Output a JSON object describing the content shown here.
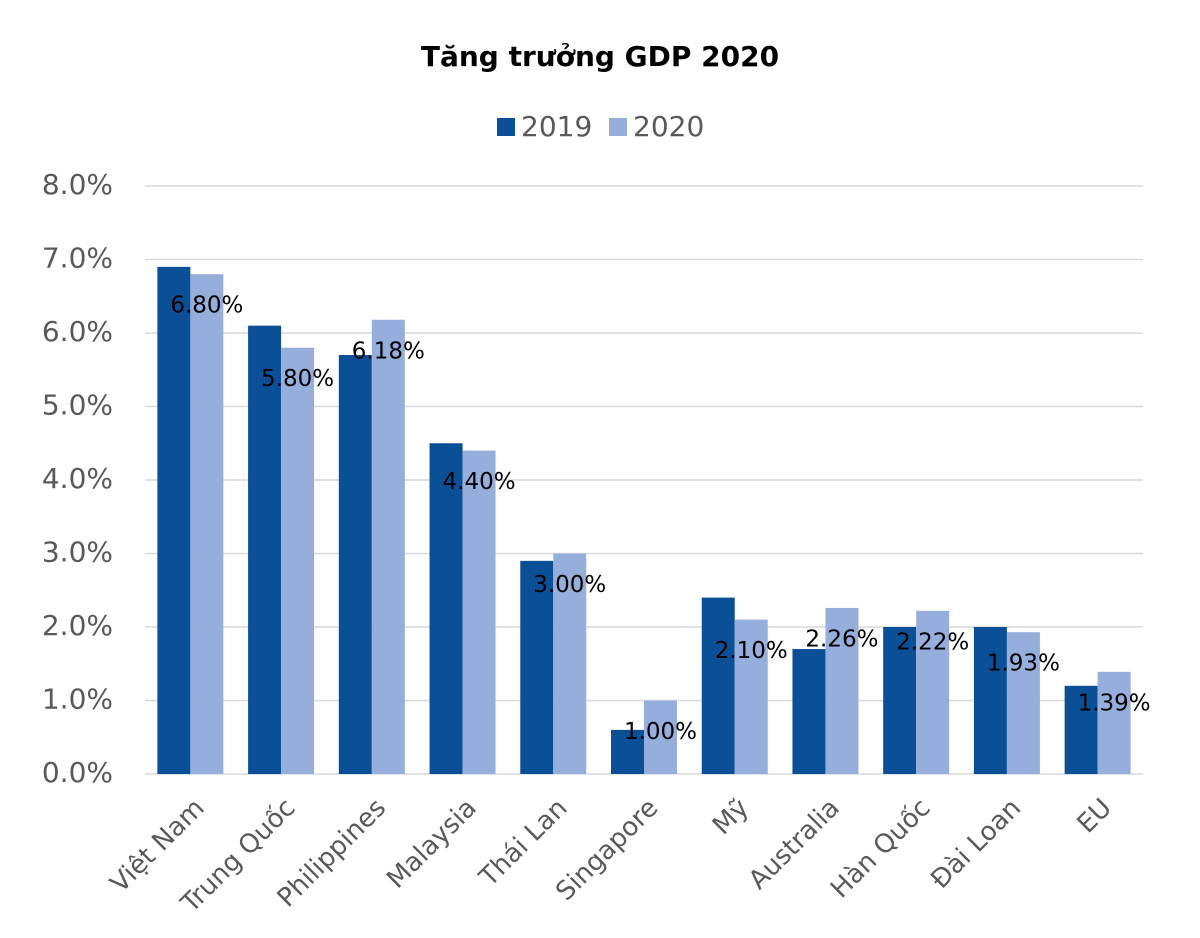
{
  "chart_data": {
    "type": "bar",
    "title": "Tăng trưởng GDP 2020",
    "categories": [
      "Việt Nam",
      "Trung Quốc",
      "Philippines",
      "Malaysia",
      "Thái Lan",
      "Singapore",
      "Mỹ",
      "Australia",
      "Hàn Quốc",
      "Đài Loan",
      "EU"
    ],
    "series": [
      {
        "name": "2019",
        "color": "#0b4f96",
        "values": [
          6.9,
          6.1,
          5.7,
          4.5,
          2.9,
          0.6,
          2.4,
          1.7,
          2.0,
          2.0,
          1.2
        ]
      },
      {
        "name": "2020",
        "color": "#95aedb",
        "values": [
          6.8,
          5.8,
          6.18,
          4.4,
          3.0,
          1.0,
          2.1,
          2.26,
          2.22,
          1.93,
          1.39
        ],
        "value_labels": [
          "6.80%",
          "5.80%",
          "6.18%",
          "4.40%",
          "3.00%",
          "1.00%",
          "2.10%",
          "2.26%",
          "2.22%",
          "1.93%",
          "1.39%"
        ]
      }
    ],
    "ylim": [
      0,
      8
    ],
    "yticks": [
      {
        "value": 0,
        "label": "0.0%"
      },
      {
        "value": 1,
        "label": "1.0%"
      },
      {
        "value": 2,
        "label": "2.0%"
      },
      {
        "value": 3,
        "label": "3.0%"
      },
      {
        "value": 4,
        "label": "4.0%"
      },
      {
        "value": 5,
        "label": "5.0%"
      },
      {
        "value": 6,
        "label": "6.0%"
      },
      {
        "value": 7,
        "label": "7.0%"
      },
      {
        "value": 8,
        "label": "8.0%"
      }
    ],
    "grid": true,
    "legend": "top"
  }
}
